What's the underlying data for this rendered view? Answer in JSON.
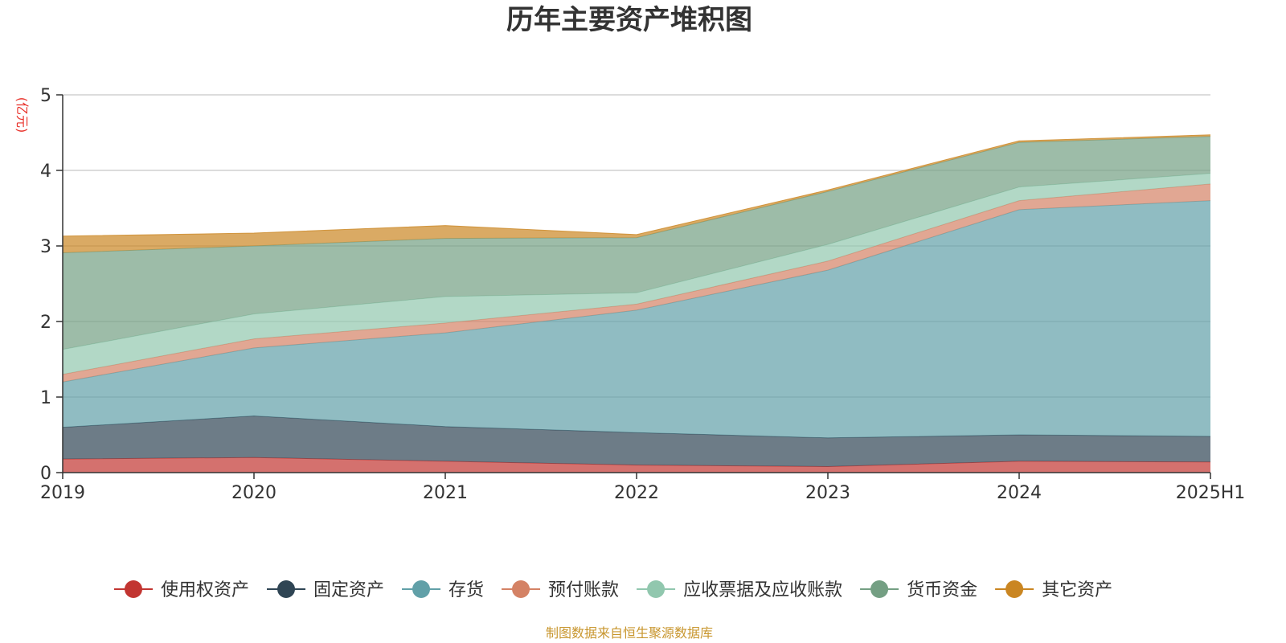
{
  "chart_data": {
    "type": "area",
    "stacked": true,
    "title": "历年主要资产堆积图",
    "unit_label": "(亿元)",
    "categories": [
      "2019",
      "2020",
      "2021",
      "2022",
      "2023",
      "2024",
      "2025H1"
    ],
    "ylim": [
      0,
      5
    ],
    "yticks": [
      0,
      1,
      2,
      3,
      4,
      5
    ],
    "grid": true,
    "legend_position": "bottom",
    "series": [
      {
        "name": "使用权资产",
        "color": "#c23531",
        "values": [
          0.18,
          0.2,
          0.15,
          0.1,
          0.08,
          0.15,
          0.14
        ]
      },
      {
        "name": "固定资产",
        "color": "#2f4554",
        "values": [
          0.42,
          0.55,
          0.46,
          0.43,
          0.38,
          0.35,
          0.34
        ]
      },
      {
        "name": "存货",
        "color": "#61a0a8",
        "values": [
          0.6,
          0.9,
          1.24,
          1.62,
          2.22,
          2.98,
          3.12
        ]
      },
      {
        "name": "预付账款",
        "color": "#d48265",
        "values": [
          0.1,
          0.12,
          0.13,
          0.08,
          0.12,
          0.12,
          0.22
        ]
      },
      {
        "name": "应收票据及应收账款",
        "color": "#91c7ae",
        "values": [
          0.33,
          0.33,
          0.35,
          0.15,
          0.22,
          0.18,
          0.14
        ]
      },
      {
        "name": "货币资金",
        "color": "#749f83",
        "values": [
          1.28,
          0.9,
          0.77,
          0.73,
          0.7,
          0.59,
          0.49
        ]
      },
      {
        "name": "其它资产",
        "color": "#ca8622",
        "values": [
          0.22,
          0.17,
          0.17,
          0.04,
          0.02,
          0.02,
          0.02
        ]
      }
    ]
  },
  "footer": {
    "source": "制图数据来自恒生聚源数据库"
  }
}
